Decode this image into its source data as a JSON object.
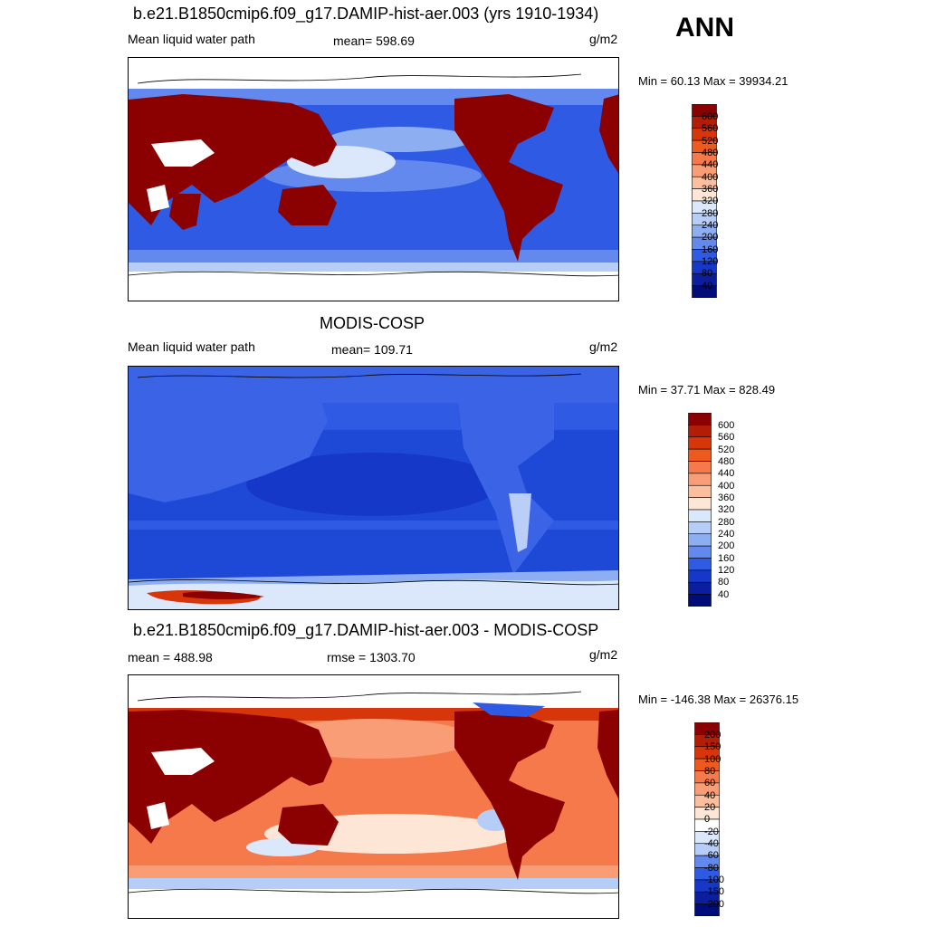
{
  "season": "ANN",
  "panels": [
    {
      "title": "b.e21.B1850cmip6.f09_g17.DAMIP-hist-aer.003 (yrs 1910-1934)",
      "left_label": "Mean liquid water path",
      "center_label": "mean= 598.69",
      "units": "g/m2",
      "minmax": "Min =  60.13 Max = 39934.21"
    },
    {
      "title": "MODIS-COSP",
      "left_label": "Mean liquid water path",
      "center_label": "mean= 109.71",
      "units": "g/m2",
      "minmax": "Min =  37.71 Max = 828.49"
    },
    {
      "title": "b.e21.B1850cmip6.f09_g17.DAMIP-hist-aer.003 - MODIS-COSP",
      "left_label": "mean = 488.98",
      "center_label": "rmse = 1303.70",
      "units": "g/m2",
      "minmax": "Min = -146.38 Max = 26376.15"
    }
  ],
  "chart_data": [
    {
      "type": "heatmap",
      "colorbar": {
        "labels": [
          "600",
          "560",
          "520",
          "480",
          "440",
          "400",
          "360",
          "320",
          "280",
          "240",
          "200",
          "160",
          "120",
          "80",
          "40"
        ],
        "colors": [
          "#8b0000",
          "#b31c05",
          "#d7350a",
          "#ee5a1e",
          "#f5794a",
          "#f99d77",
          "#fbbf9f",
          "#fde6d5",
          "#dbe8fb",
          "#b6cdf7",
          "#8eaef2",
          "#6389ee",
          "#2f5ae3",
          "#1538c9",
          "#0b1f9e",
          "#000c77"
        ]
      }
    },
    {
      "type": "heatmap",
      "colorbar": {
        "labels": [
          "600",
          "560",
          "520",
          "480",
          "440",
          "400",
          "360",
          "320",
          "280",
          "240",
          "200",
          "160",
          "120",
          "80",
          "40"
        ],
        "colors": [
          "#8b0000",
          "#b31c05",
          "#d7350a",
          "#ee5a1e",
          "#f5794a",
          "#f99d77",
          "#fbbf9f",
          "#fde6d5",
          "#dbe8fb",
          "#b6cdf7",
          "#8eaef2",
          "#6389ee",
          "#2f5ae3",
          "#1538c9",
          "#0b1f9e",
          "#000c77"
        ]
      }
    },
    {
      "type": "heatmap",
      "colorbar": {
        "labels": [
          "200",
          "150",
          "100",
          "80",
          "60",
          "40",
          "20",
          "0",
          "-20",
          "-40",
          "-60",
          "-80",
          "-100",
          "-150",
          "-200"
        ],
        "colors": [
          "#8b0000",
          "#b31c05",
          "#d7350a",
          "#ee5a1e",
          "#f5794a",
          "#f99d77",
          "#fbbf9f",
          "#fde6d5",
          "#ffffff",
          "#dbe8fb",
          "#b6cdf7",
          "#6389ee",
          "#2f5ae3",
          "#1538c9",
          "#0b1f9e",
          "#000c77"
        ]
      }
    }
  ]
}
